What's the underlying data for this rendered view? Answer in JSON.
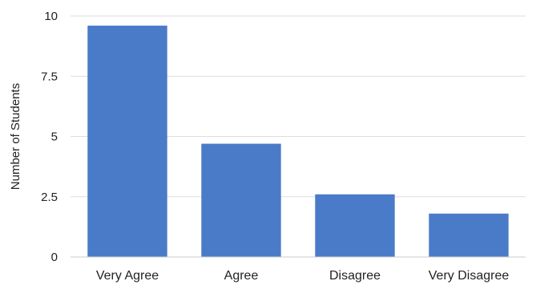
{
  "chart_data": {
    "type": "bar",
    "title": "",
    "xlabel": "",
    "ylabel": "Number of Students",
    "categories": [
      "Very Agree",
      "Agree",
      "Disagree",
      "Very Disagree"
    ],
    "values": [
      9.6,
      4.7,
      2.6,
      1.8
    ],
    "ylim": [
      0,
      10
    ],
    "yticks": [
      0,
      2.5,
      5,
      7.5,
      10
    ],
    "ytick_labels": [
      "0",
      "2.5",
      "5",
      "7.5",
      "10"
    ],
    "grid": true,
    "legend": "none",
    "colors": {
      "bar": "#4a7bc8",
      "grid": "#dddddd",
      "axis": "#cccccc"
    }
  }
}
